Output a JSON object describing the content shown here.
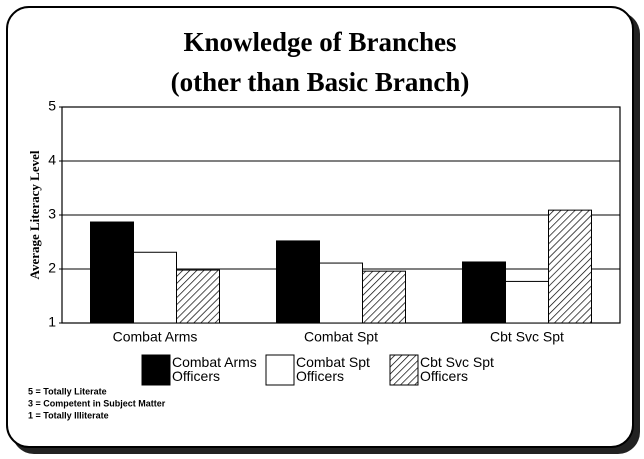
{
  "chart_data": {
    "type": "bar",
    "title": "Knowledge of Branches",
    "subtitle": "(other than Basic Branch)",
    "y_label": "Average Literacy Level",
    "categories": [
      "Combat Arms",
      "Combat Spt",
      "Cbt Svc Spt"
    ],
    "series": [
      {
        "name": "Combat Arms Officers",
        "color": "#000000",
        "values": [
          2.87,
          2.52,
          2.13
        ]
      },
      {
        "name": "Combat Spt Officers",
        "color": "#ffffff",
        "values": [
          2.31,
          2.11,
          1.77
        ]
      },
      {
        "name": "Cbt Svc Spt Officers",
        "color": "#ffffff",
        "pattern": "diagonal-hatch",
        "values": [
          1.98,
          1.96,
          3.09
        ]
      }
    ],
    "ylim": [
      1,
      5
    ],
    "yticks": [
      1,
      2,
      3,
      4,
      5
    ],
    "grid": true,
    "legend": "bottom",
    "notes": [
      "5 = Totally Literate",
      "3 = Competent in Subject Matter",
      "1 = Totally Illiterate"
    ]
  }
}
